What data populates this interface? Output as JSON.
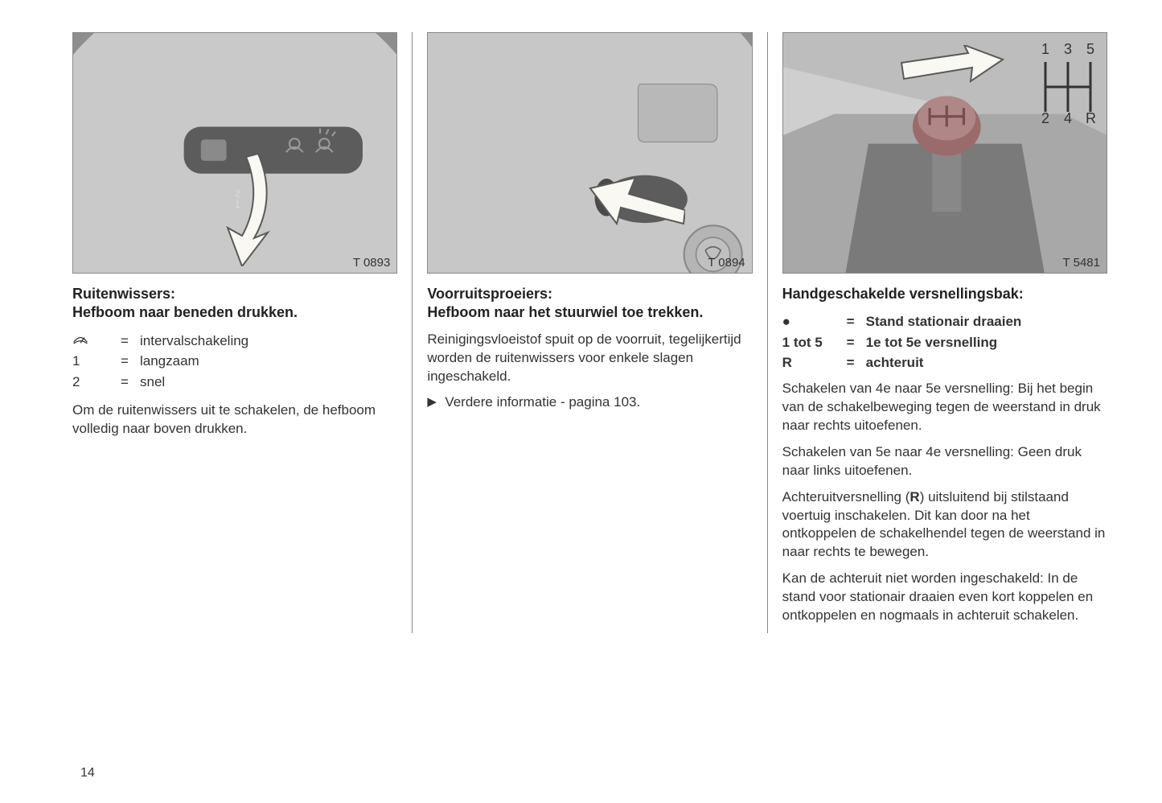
{
  "page_number": "14",
  "colors": {
    "text": "#333333",
    "heading": "#222222",
    "border": "#888888",
    "figure_bg": "#d0d0d0",
    "arrow_fill": "#faf8f2",
    "arrow_stroke": "#5a5a5a",
    "steering_light": "#bfbfbf",
    "steering_dark": "#8e8e8e",
    "lever_dark": "#5c5c5c",
    "dash_grey": "#b0b0b0",
    "knob_red": "#9a6b6b"
  },
  "columns": [
    {
      "figure_label": "T 0893",
      "heading_lines": [
        "Ruitenwissers:",
        "Hefboom naar beneden drukken."
      ],
      "legend": [
        {
          "symbol_type": "icon",
          "symbol": "wiper",
          "desc": "intervalschakeling"
        },
        {
          "symbol_type": "text",
          "symbol": "1",
          "desc": "langzaam"
        },
        {
          "symbol_type": "text",
          "symbol": "2",
          "desc": "snel"
        }
      ],
      "paragraphs": [
        "Om de ruitenwissers uit te schakelen, de hefboom volledig naar boven drukken."
      ]
    },
    {
      "figure_label": "T 0894",
      "heading_lines": [
        "Voorruitsproeiers:",
        "Hefboom naar het stuurwiel toe trekken."
      ],
      "paragraphs": [
        "Reinigingsvloeistof spuit op de voorruit, tegelijkertijd worden de ruitenwissers voor enkele slagen ingeschakeld."
      ],
      "bullet_paragraphs": [
        {
          "marker": "▶",
          "text": "Verdere informatie - pagina 103."
        }
      ]
    },
    {
      "figure_label": "T 5481",
      "gear_labels": {
        "top": [
          "1",
          "3",
          "5"
        ],
        "bottom": [
          "2",
          "4",
          "R"
        ]
      },
      "heading_lines": [
        "Handgeschakelde versnellingsbak:"
      ],
      "def_rows": [
        {
          "symbol": "●",
          "eq": "=",
          "desc": "Stand stationair draaien",
          "bold": true
        },
        {
          "symbol": "1 tot 5",
          "eq": "=",
          "desc": "1e tot 5e versnelling",
          "bold": true
        },
        {
          "symbol": "R",
          "eq": "=",
          "desc": "achteruit",
          "bold": true
        }
      ],
      "paragraphs": [
        "Schakelen van 4e naar 5e versnelling: Bij het begin van de schakelbeweging tegen de weerstand in druk naar rechts uitoefenen.",
        "Schakelen van 5e naar 4e versnelling: Geen druk naar links uitoefenen.",
        "Achteruitversnelling (<b>R</b>) uitsluitend bij stilstaand voertuig inschakelen. Dit kan door na het ontkoppelen de schakelhendel tegen de weerstand in naar rechts te bewegen.",
        "Kan de achteruit niet worden ingeschakeld: In de stand voor stationair draaien even kort koppelen en ontkoppelen en nogmaals in achteruit schakelen."
      ]
    }
  ]
}
